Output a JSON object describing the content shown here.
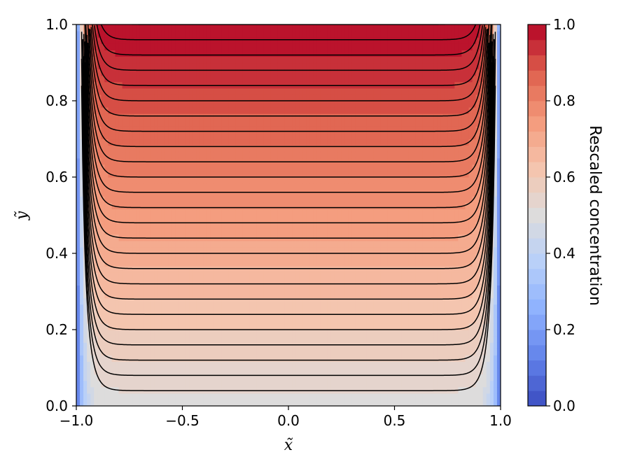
{
  "chart_data": {
    "type": "contour",
    "title": "",
    "xlabel": "x̃",
    "ylabel": "ỹ",
    "xlim": [
      -1.0,
      1.0
    ],
    "ylim": [
      0.0,
      1.0
    ],
    "x_ticks": [
      -1.0,
      -0.5,
      0.0,
      0.5,
      1.0
    ],
    "x_tick_labels": [
      "−1.0",
      "−0.5",
      "0.0",
      "0.5",
      "1.0"
    ],
    "y_ticks": [
      0.0,
      0.2,
      0.4,
      0.6,
      0.8,
      1.0
    ],
    "y_tick_labels": [
      "0.0",
      "0.2",
      "0.4",
      "0.6",
      "0.8",
      "1.0"
    ],
    "grid": false,
    "colormap": "coolwarm",
    "colorbar": {
      "label": "Rescaled concentration",
      "range": [
        0.0,
        1.0
      ],
      "ticks": [
        0.0,
        0.2,
        0.4,
        0.6,
        0.8,
        1.0
      ],
      "tick_labels": [
        "0.0",
        "0.2",
        "0.4",
        "0.6",
        "0.8",
        "1.0"
      ],
      "levels": 25
    },
    "field_description": "c(x, y) ≈ 0.5 + 0.5·y in the interior, dropping to 0 at x = ±1 boundaries",
    "contour_line_levels": [
      0.52,
      0.54,
      0.56,
      0.58,
      0.6,
      0.62,
      0.64,
      0.66,
      0.68,
      0.7,
      0.72,
      0.74,
      0.76,
      0.78,
      0.8,
      0.82,
      0.84,
      0.86,
      0.88,
      0.9,
      0.92,
      0.94,
      0.96,
      0.98,
      1.0
    ],
    "contour_line_color": "#000000"
  }
}
